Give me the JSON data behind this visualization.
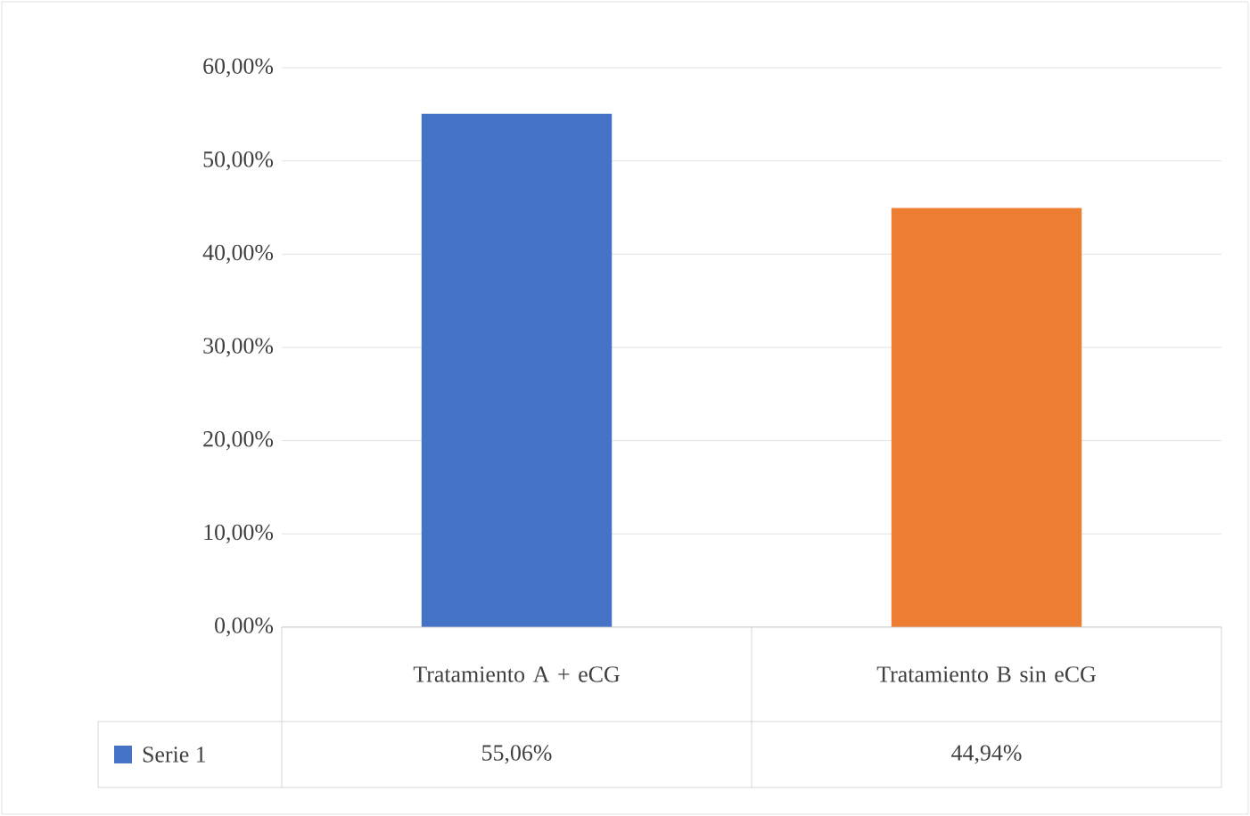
{
  "chart_data": {
    "type": "bar",
    "categories": [
      "Tratamiento A + eCG",
      "Tratamiento B sin eCG"
    ],
    "series": [
      {
        "name": "Serie 1",
        "colors": [
          "#4472c4",
          "#ed7d31"
        ],
        "values": [
          55.06,
          44.94
        ],
        "value_labels": [
          "55,06%",
          "44,94%"
        ]
      }
    ],
    "ylim": [
      0,
      60
    ],
    "yticks": [
      {
        "value": 0,
        "label": "0,00%"
      },
      {
        "value": 10,
        "label": "10,00%"
      },
      {
        "value": 20,
        "label": "20,00%"
      },
      {
        "value": 30,
        "label": "30,00%"
      },
      {
        "value": 40,
        "label": "40,00%"
      },
      {
        "value": 50,
        "label": "50,00%"
      },
      {
        "value": 60,
        "label": "60,00%"
      }
    ],
    "grid": "y",
    "legend": "bottom left"
  }
}
